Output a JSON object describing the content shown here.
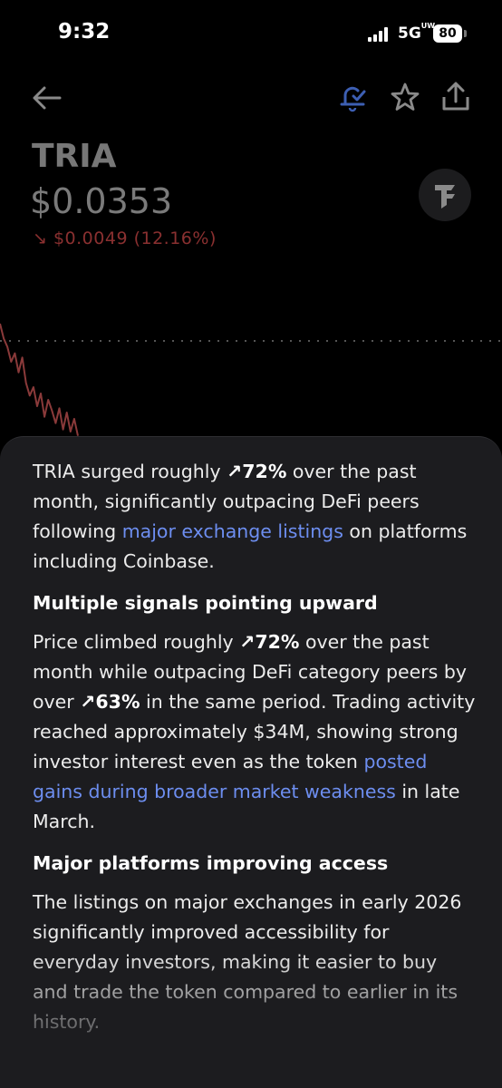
{
  "status_bar": {
    "time": "9:32",
    "network": "5G",
    "network_sup": "UW",
    "battery": "80"
  },
  "header": {
    "back_icon": "back-arrow-icon",
    "alert_icon": "bell-check-icon",
    "watchlist_icon": "star-icon",
    "share_icon": "share-icon"
  },
  "asset": {
    "ticker": "TRIA",
    "price": "$0.0353",
    "change_arrow": "↘",
    "change": "$0.0049 (12.16%)",
    "change_color": "#8a3030"
  },
  "chart_data": {
    "type": "line",
    "series": [
      {
        "values": [
          0.0402,
          0.0395,
          0.0391,
          0.0384,
          0.0388,
          0.0379,
          0.0386,
          0.0374,
          0.0368,
          0.0372,
          0.0363,
          0.0369,
          0.0358,
          0.0366,
          0.0361,
          0.0355,
          0.0362,
          0.0352,
          0.036,
          0.0351,
          0.0357,
          0.0349
        ]
      }
    ],
    "line_color": "#8a3a3a",
    "reference_line": "dotted",
    "title": "",
    "xlabel": "",
    "ylabel": ""
  },
  "insight": {
    "intro": {
      "t1": "TRIA surged roughly ",
      "a1": "↗72%",
      "t2": " over the past month, significantly outpacing DeFi peers following ",
      "l1": "major exchange listings",
      "t3": " on platforms including Coinbase."
    },
    "section1": {
      "heading": "Multiple signals pointing upward",
      "t1": "Price climbed roughly ",
      "a1": "↗72%",
      "t2": " over the past month while outpacing DeFi category peers by over ",
      "a2": "↗63%",
      "t3": " in the same period. Trading activity reached approximately $34M, showing strong investor interest even as the token ",
      "l1": "posted gains during broader market weakness",
      "t4": " in late March."
    },
    "section2": {
      "heading": "Major platforms improving access",
      "t1": "The listings on major exchanges in early 2026 significantly improved accessibility for everyday investors, making it easier to buy and trade the token compared to earlier in its history."
    }
  }
}
